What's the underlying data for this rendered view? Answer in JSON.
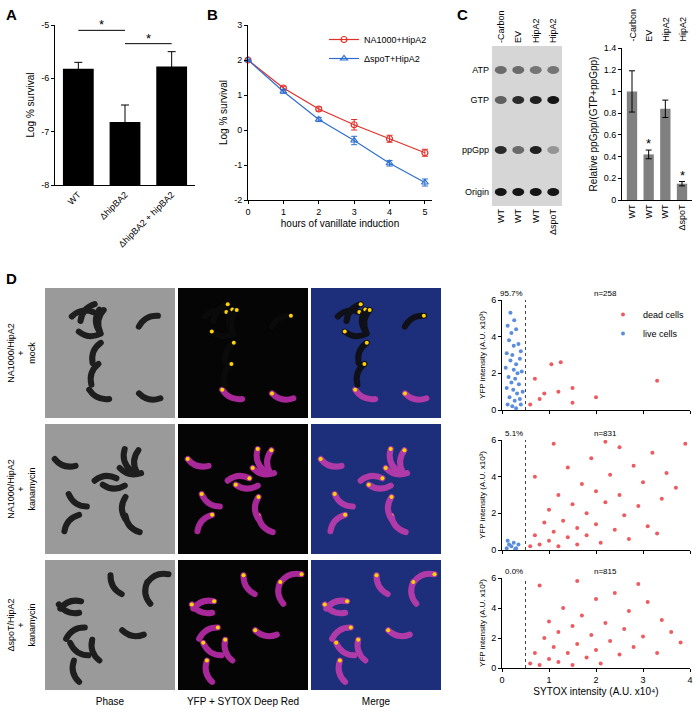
{
  "chart_data": [
    {
      "type": "bar",
      "panel_label": "A",
      "categories": [
        "WT",
        "ΔhipBA2",
        "ΔhipBA2 + hipBA2"
      ],
      "values": [
        -5.82,
        -6.82,
        -5.78
      ],
      "errors": [
        0.12,
        0.32,
        0.28
      ],
      "color": "#000000",
      "ylabel": "Log % survival",
      "ylim": [
        -8,
        -5
      ],
      "yticks": [
        -8,
        -7,
        -6,
        -5
      ],
      "comparisons": [
        {
          "from": 0,
          "to": 1,
          "y": -5.1,
          "label": "*"
        },
        {
          "from": 1,
          "to": 2,
          "y": -5.35,
          "label": "*"
        }
      ]
    },
    {
      "type": "line",
      "panel_label": "B",
      "x": [
        0,
        1,
        2,
        3,
        4,
        5
      ],
      "series": [
        {
          "name": "NA1000+HipA2",
          "color": "#e0302a",
          "marker": "circle-open",
          "values": [
            2,
            1.2,
            0.6,
            0.15,
            -0.25,
            -0.65
          ],
          "errors": [
            0,
            0.05,
            0.06,
            0.15,
            0.1,
            0.1
          ]
        },
        {
          "name": "ΔspoT+HipA2",
          "color": "#2f6fd0",
          "marker": "triangle-up-open",
          "values": [
            2,
            1.1,
            0.3,
            -0.3,
            -0.95,
            -1.5
          ],
          "errors": [
            0,
            0.05,
            0.06,
            0.12,
            0.08,
            0.1
          ]
        }
      ],
      "xlabel": "hours of vanillate induction",
      "ylabel": "Log % survival",
      "xlim": [
        0,
        5.2
      ],
      "xticks": [
        0,
        1,
        2,
        3,
        4,
        5
      ],
      "ylim": [
        -2,
        3
      ],
      "yticks": [
        -2,
        -1,
        0,
        1,
        2,
        3
      ],
      "legend": "top right"
    },
    {
      "type": "bar",
      "categories": [
        "WT",
        "WT",
        "WT",
        "ΔspoT"
      ],
      "conditions": [
        "-Carbon",
        "EV",
        "HipA2",
        "HipA2"
      ],
      "values": [
        1.0,
        0.42,
        0.84,
        0.15
      ],
      "errors": [
        0.19,
        0.04,
        0.08,
        0.02
      ],
      "significant": [
        false,
        true,
        false,
        true
      ],
      "significance_label": "*",
      "color": "#808080",
      "ylabel": "Relative ppGpp/(GTP+ppGpp)",
      "ylim": [
        0,
        1.4
      ],
      "yticks": [
        0,
        0.2,
        0.4,
        0.6,
        0.8,
        1,
        1.2,
        1.4
      ]
    },
    {
      "type": "scatter",
      "ylabel": "YFP intensity (A.U. x10³)",
      "xlim": [
        0,
        4
      ],
      "xticks": [
        0,
        1,
        2,
        3,
        4
      ],
      "ylim": [
        0,
        6
      ],
      "yticks": [
        0,
        2,
        4,
        6
      ],
      "threshold": 0.5,
      "live_fraction_label": "95.7%",
      "count_label": "n=258",
      "tick_labels": "y",
      "legend": "top right",
      "series": [
        {
          "name": "dead cells",
          "color": "#ee5a5f",
          "x": [
            0.6,
            0.7,
            0.8,
            0.9,
            1.05,
            1.2,
            1.25,
            1.5,
            1.5,
            2.0,
            3.3
          ],
          "values": [
            0.3,
            1.7,
            0.6,
            0.9,
            2.5,
            1.0,
            2.6,
            1.2,
            0.4,
            0.7,
            1.6
          ]
        },
        {
          "name": "live cells",
          "color": "#5a8de0",
          "x": [
            0.12,
            0.2,
            0.3,
            0.15,
            0.25,
            0.35,
            0.1,
            0.22,
            0.4,
            0.18,
            0.3,
            0.38,
            0.08,
            0.25,
            0.33,
            0.42,
            0.14,
            0.28,
            0.2,
            0.36,
            0.1,
            0.24,
            0.32,
            0.44,
            0.16,
            0.27,
            0.38,
            0.12,
            0.22,
            0.3,
            0.4,
            0.18,
            0.26
          ],
          "values": [
            4.6,
            4.2,
            4.4,
            3.8,
            3.5,
            3.6,
            3.1,
            3.0,
            3.2,
            2.7,
            2.5,
            2.8,
            2.3,
            2.2,
            2.0,
            2.1,
            1.8,
            1.7,
            1.5,
            1.4,
            1.2,
            1.1,
            0.9,
            1.0,
            0.7,
            0.5,
            0.6,
            0.3,
            0.2,
            0.1,
            0.3,
            5.3,
            4.9
          ]
        }
      ]
    },
    {
      "type": "scatter",
      "ylabel": "YFP intensity (A.U. x10³)",
      "xlim": [
        0,
        4
      ],
      "xticks": [
        0,
        1,
        2,
        3,
        4
      ],
      "ylim": [
        0,
        6
      ],
      "yticks": [
        0,
        2,
        4,
        6
      ],
      "threshold": 0.5,
      "live_fraction_label": "5.1%",
      "count_label": "n=831",
      "tick_labels": "y",
      "series": [
        {
          "name": "dead cells",
          "color": "#ee5a5f",
          "x": [
            0.6,
            0.7,
            0.8,
            0.9,
            1.0,
            1.0,
            1.1,
            1.2,
            1.2,
            1.3,
            1.4,
            1.4,
            1.5,
            1.6,
            1.6,
            1.7,
            1.8,
            1.8,
            1.9,
            2.0,
            2.0,
            2.1,
            2.2,
            2.3,
            2.4,
            2.5,
            2.5,
            2.6,
            2.7,
            2.8,
            2.9,
            3.0,
            3.1,
            3.2,
            3.4,
            3.5,
            3.7,
            3.9,
            1.1,
            0.7,
            2.2,
            3.3
          ],
          "values": [
            0.2,
            0.8,
            0.3,
            1.5,
            0.5,
            2.2,
            1.0,
            0.2,
            3.0,
            1.6,
            0.7,
            4.5,
            2.5,
            1.2,
            0.3,
            3.6,
            2.0,
            0.8,
            5.0,
            1.4,
            3.2,
            0.4,
            2.6,
            4.1,
            1.1,
            3.0,
            5.6,
            1.9,
            0.6,
            4.6,
            2.4,
            3.7,
            1.3,
            5.3,
            2.8,
            4.2,
            3.4,
            5.8,
            5.8,
            4.0,
            5.9,
            0.9
          ]
        },
        {
          "name": "live cells",
          "color": "#5a8de0",
          "x": [
            0.1,
            0.15,
            0.2,
            0.25,
            0.3,
            0.35,
            0.12,
            0.28
          ],
          "values": [
            0.1,
            0.3,
            0.2,
            0.4,
            0.1,
            0.3,
            0.5,
            0.05
          ]
        }
      ]
    },
    {
      "type": "scatter",
      "ylabel": "YFP intensity (A.U. x10³)",
      "xlabel": "SYTOX intensity (A.U. x10⁴)",
      "xlim": [
        0,
        4
      ],
      "xticks": [
        0,
        1,
        2,
        3,
        4
      ],
      "ylim": [
        0,
        6
      ],
      "yticks": [
        0,
        2,
        4,
        6
      ],
      "threshold": 0.5,
      "live_fraction_label": "0.0%",
      "count_label": "n=815",
      "series": [
        {
          "name": "dead cells",
          "color": "#ee5a5f",
          "x": [
            0.6,
            0.7,
            0.8,
            0.9,
            1.0,
            1.0,
            1.1,
            1.2,
            1.2,
            1.3,
            1.4,
            1.5,
            1.5,
            1.6,
            1.7,
            1.8,
            1.9,
            2.0,
            2.0,
            2.1,
            2.2,
            2.3,
            2.4,
            2.5,
            2.6,
            2.7,
            2.8,
            3.0,
            3.1,
            3.3,
            3.4,
            3.6,
            0.8,
            1.6,
            2.9,
            3.8
          ],
          "values": [
            0.3,
            1.0,
            0.2,
            2.0,
            0.6,
            3.1,
            1.4,
            0.4,
            2.4,
            4.0,
            1.0,
            0.2,
            2.8,
            1.6,
            3.5,
            0.7,
            2.2,
            4.6,
            1.2,
            0.3,
            3.0,
            1.8,
            5.0,
            0.9,
            2.6,
            3.8,
            1.4,
            2.1,
            4.4,
            1.0,
            3.2,
            2.4,
            5.5,
            5.8,
            5.6,
            1.7
          ]
        },
        {
          "name": "live cells",
          "color": "#5a8de0",
          "x": [],
          "values": []
        }
      ]
    }
  ],
  "tlc": {
    "panel_label": "C",
    "spots": [
      "ATP",
      "GTP",
      "ppGpp",
      "Origin"
    ],
    "lanes_top": [
      "-Carbon",
      "EV",
      "HipA2",
      "HipA2"
    ],
    "lanes_bottom": [
      "WT",
      "WT",
      "WT",
      "ΔspoT"
    ]
  },
  "micrographs": {
    "panel_label": "D",
    "columns": [
      "Phase",
      "YFP + SYTOX Deep Red",
      "Merge"
    ],
    "rows": [
      [
        "NA1000/HipA2",
        "+",
        "mock"
      ],
      [
        "NA1000/HipA2",
        "+",
        "kanamycin"
      ],
      [
        "ΔspoT/HipA2",
        "+",
        "kanamycin"
      ]
    ]
  }
}
